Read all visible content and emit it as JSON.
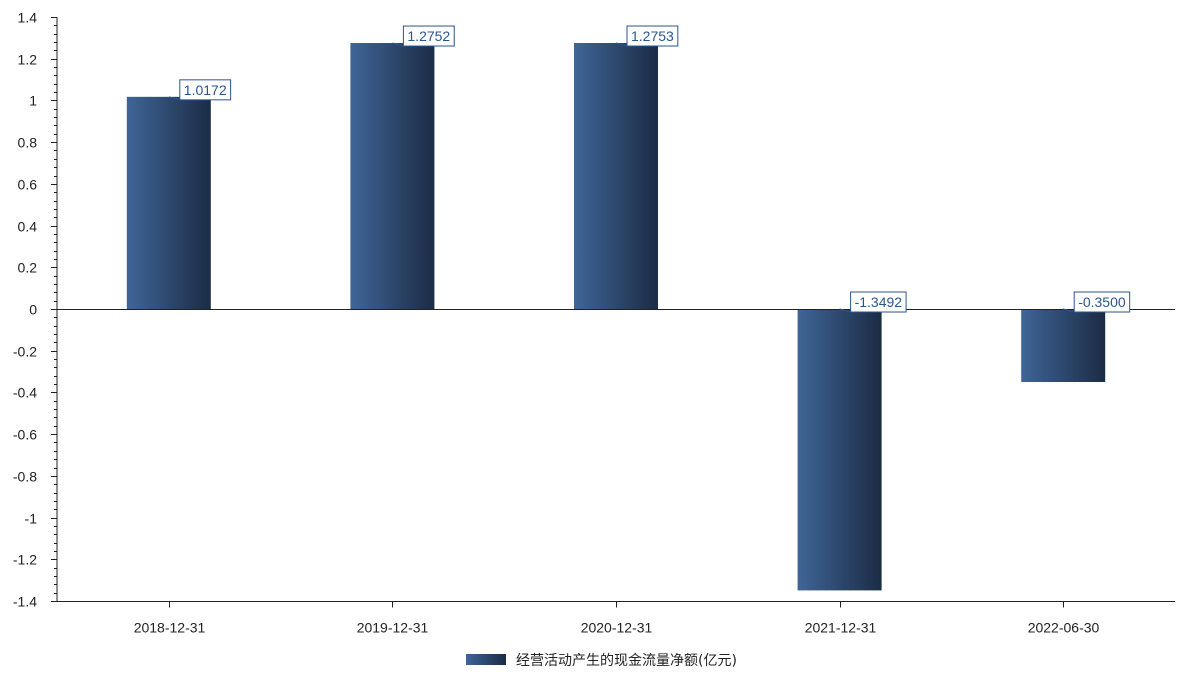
{
  "chart_data": {
    "type": "bar",
    "categories": [
      "2018-12-31",
      "2019-12-31",
      "2020-12-31",
      "2021-12-31",
      "2022-06-30"
    ],
    "series": [
      {
        "name": "经营活动产生的现金流量净额(亿元)",
        "values": [
          1.0172,
          1.2752,
          1.2753,
          -1.3492,
          -0.35
        ],
        "labels": [
          "1.0172",
          "1.2752",
          "1.2753",
          "-1.3492",
          "-0.3500"
        ]
      }
    ],
    "ylim": [
      -1.4,
      1.4
    ],
    "yticks": [
      1.4,
      1.2,
      1,
      0.8,
      0.6,
      0.4,
      0.2,
      0,
      -0.2,
      -0.4,
      -0.6,
      -0.8,
      -1,
      -1.2,
      -1.4
    ],
    "ytick_labels": [
      "1.4",
      "1.2",
      "1",
      "0.8",
      "0.6",
      "0.4",
      "0.2",
      "0",
      "-0.2",
      "-0.4",
      "-0.6",
      "-0.8",
      "-1",
      "-1.2",
      "-1.4"
    ],
    "grid": false,
    "legend_position": "bottom-center",
    "colors": {
      "bar_light": "#3f6597",
      "bar_dark": "#1b2c45",
      "label_border": "#2a5590",
      "label_text": "#2a5590",
      "axis": "#222222"
    }
  }
}
